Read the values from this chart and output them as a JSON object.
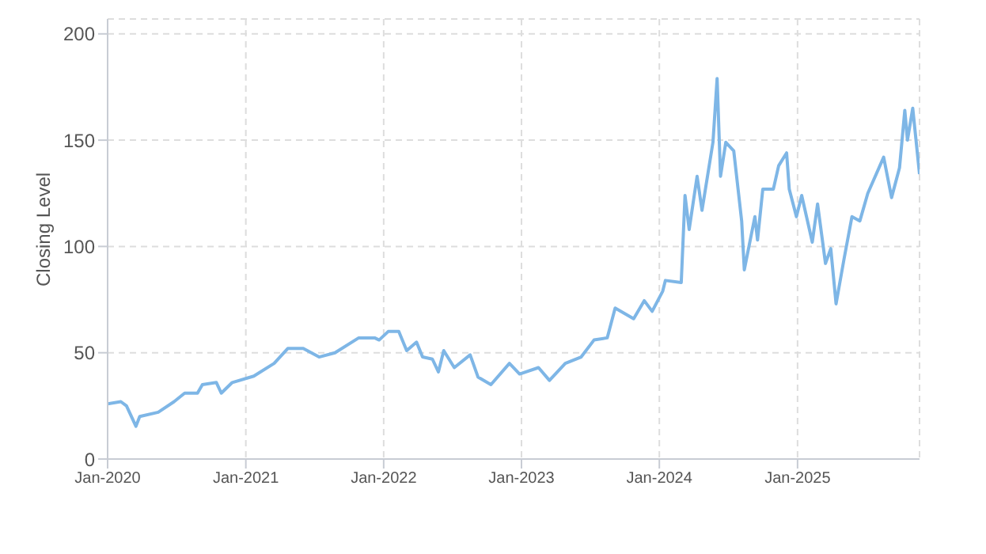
{
  "chart_data": {
    "type": "line",
    "ylabel": "Closing Level",
    "xlim": [
      "2020-01-01",
      "2025-11-20"
    ],
    "xticks": [
      {
        "value": "2020-01",
        "label": "Jan-2020"
      },
      {
        "value": "2021-01",
        "label": "Jan-2021"
      },
      {
        "value": "2022-01",
        "label": "Jan-2022"
      },
      {
        "value": "2023-01",
        "label": "Jan-2023"
      },
      {
        "value": "2024-01",
        "label": "Jan-2024"
      },
      {
        "value": "2025-01",
        "label": "Jan-2025"
      }
    ],
    "ylim": [
      0,
      207
    ],
    "yticks": [
      0,
      50,
      100,
      150,
      200
    ],
    "grid": true,
    "marker": "none",
    "line_style": "solid",
    "x": [
      "2020-01-01",
      "2020-02-05",
      "2020-02-20",
      "2020-03-16",
      "2020-03-26",
      "2020-05-14",
      "2020-06-25",
      "2020-07-23",
      "2020-08-26",
      "2020-09-08",
      "2020-10-15",
      "2020-10-28",
      "2020-11-26",
      "2021-01-22",
      "2021-03-17",
      "2021-04-22",
      "2021-06-02",
      "2021-07-14",
      "2021-08-25",
      "2021-10-27",
      "2021-12-08",
      "2021-12-20",
      "2022-01-13",
      "2022-02-10",
      "2022-03-03",
      "2022-03-29",
      "2022-04-14",
      "2022-05-10",
      "2022-05-26",
      "2022-06-09",
      "2022-07-07",
      "2022-08-18",
      "2022-09-08",
      "2022-10-12",
      "2022-11-30",
      "2022-12-27",
      "2023-02-15",
      "2023-03-16",
      "2023-04-27",
      "2023-06-08",
      "2023-07-12",
      "2023-08-16",
      "2023-09-06",
      "2023-10-25",
      "2023-11-22",
      "2023-12-13",
      "2024-01-10",
      "2024-01-17",
      "2024-02-28",
      "2024-03-09",
      "2024-03-20",
      "2024-04-10",
      "2024-04-23",
      "2024-05-22",
      "2024-06-02",
      "2024-06-11",
      "2024-06-25",
      "2024-07-16",
      "2024-08-06",
      "2024-08-13",
      "2024-09-10",
      "2024-09-17",
      "2024-10-01",
      "2024-10-29",
      "2024-11-12",
      "2024-12-03",
      "2024-12-10",
      "2024-12-29",
      "2025-01-12",
      "2025-02-09",
      "2025-02-23",
      "2025-03-16",
      "2025-03-30",
      "2025-04-13",
      "2025-05-04",
      "2025-05-25",
      "2025-06-15",
      "2025-07-06",
      "2025-08-17",
      "2025-09-07",
      "2025-09-28",
      "2025-10-12",
      "2025-10-19",
      "2025-11-02",
      "2025-11-20"
    ],
    "series": [
      {
        "color": "#7eb6e6",
        "values": [
          26,
          27,
          25,
          15.4,
          20,
          22,
          27,
          31,
          31,
          35,
          36,
          31,
          36,
          39,
          45,
          52,
          52,
          48,
          50,
          57,
          57,
          56,
          60,
          60,
          51,
          55,
          48,
          47,
          41,
          51,
          43,
          49,
          38.5,
          35,
          45,
          40,
          43,
          37,
          45,
          48,
          56,
          57,
          71,
          66,
          74.5,
          69.5,
          79,
          84,
          83,
          124,
          108,
          133,
          117,
          149,
          179,
          133,
          149,
          145,
          112,
          89,
          114,
          103,
          127,
          127,
          138,
          144,
          127,
          114,
          124,
          102,
          120,
          92,
          99,
          73,
          94,
          114,
          112,
          125,
          142,
          123,
          137,
          164,
          150,
          165,
          134
        ]
      }
    ]
  }
}
